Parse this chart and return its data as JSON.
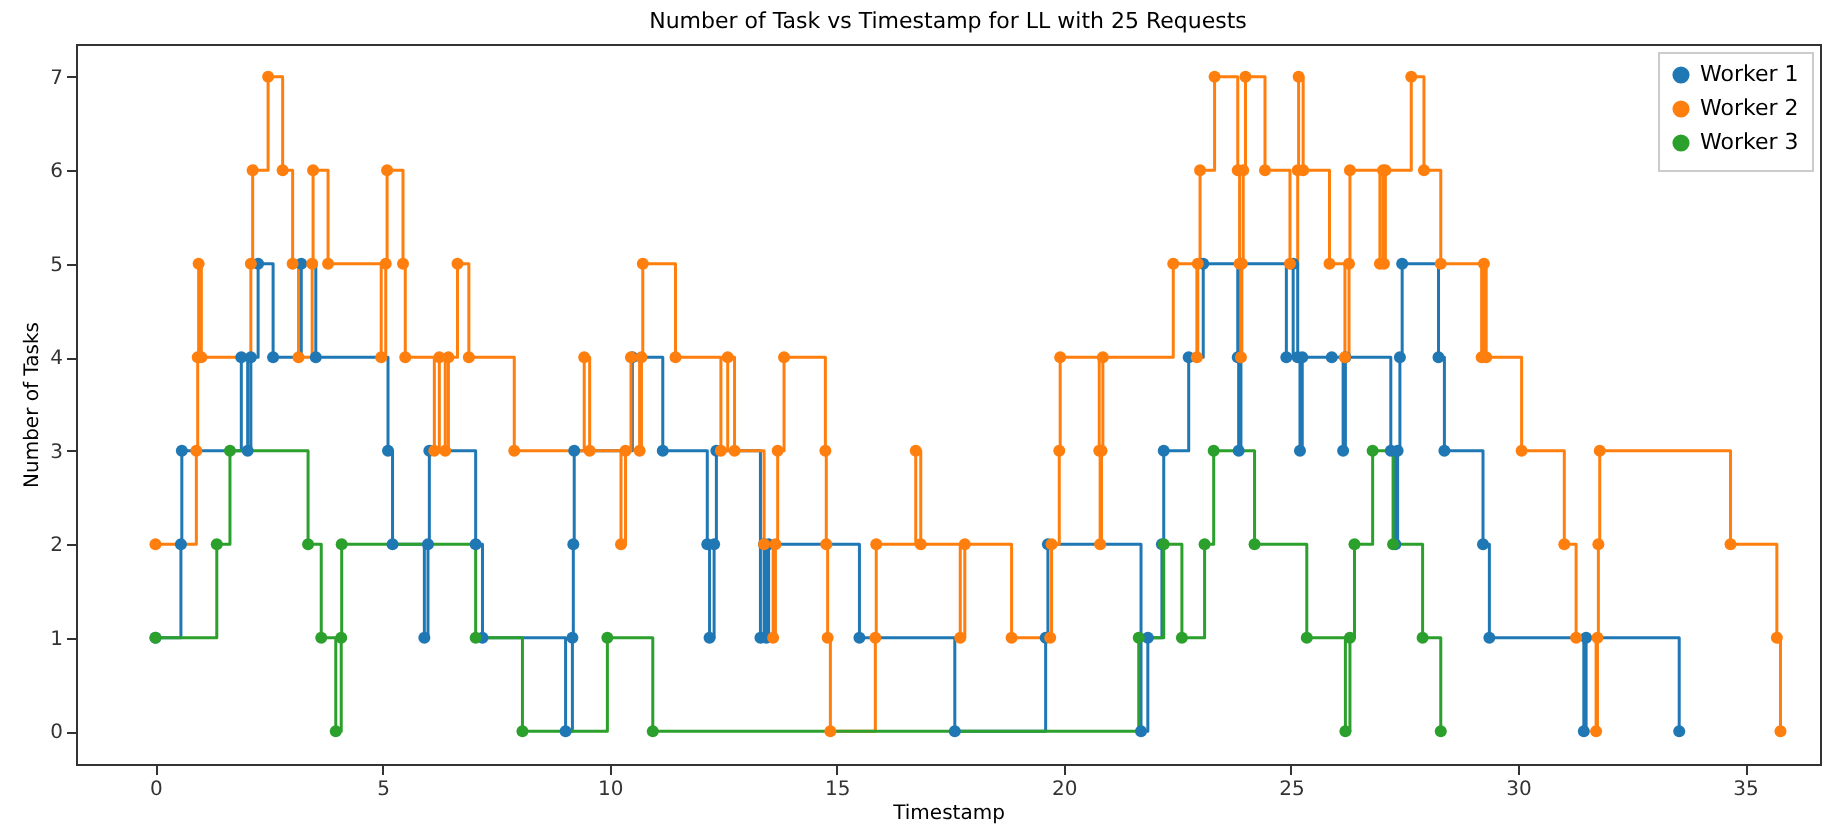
{
  "chart_data": {
    "type": "step",
    "title": "Number of Task vs Timestamp for LL with 25 Requests",
    "xlabel": "Timestamp",
    "ylabel": "Number of Tasks",
    "xlim": [
      -1.75,
      36.65
    ],
    "xticks": [
      0,
      5,
      10,
      15,
      20,
      25,
      30,
      35
    ],
    "ylim": [
      -0.35,
      7.35
    ],
    "yticks": [
      0,
      1,
      2,
      3,
      4,
      5,
      6,
      7
    ],
    "grid": false,
    "legend": "top right",
    "marker": "circle",
    "line_style": "solid",
    "series": [
      {
        "name": "Worker 1",
        "color": "#1f77b4",
        "x": [
          0,
          0.56,
          0.58,
          1.89,
          2.03,
          2.1,
          2.26,
          2.59,
          3.21,
          3.53,
          5.12,
          5.22,
          5.92,
          6.0,
          6.03,
          7.05,
          7.2,
          9.03,
          9.18,
          9.2,
          9.22,
          10.5,
          11.17,
          12.15,
          12.2,
          12.3,
          12.35,
          13.32,
          13.4,
          13.45,
          13.5,
          15.5,
          17.6,
          19.6,
          19.65,
          21.7,
          21.85,
          22.16,
          22.2,
          22.75,
          23.07,
          23.83,
          23.85,
          23.9,
          24.9,
          25.05,
          25.15,
          25.2,
          25.25,
          25.9,
          26.15,
          26.2,
          27.2,
          27.3,
          27.35,
          27.4,
          27.45,
          28.25,
          28.38,
          29.23,
          29.37,
          31.45,
          31.5,
          33.55
        ],
        "values": [
          1,
          2,
          3,
          4,
          3,
          4,
          5,
          4,
          5,
          4,
          3,
          2,
          1,
          2,
          3,
          2,
          1,
          0,
          1,
          2,
          3,
          4,
          3,
          2,
          1,
          2,
          3,
          1,
          2,
          1,
          2,
          1,
          0,
          1,
          2,
          0,
          1,
          2,
          3,
          4,
          5,
          4,
          3,
          5,
          4,
          5,
          4,
          3,
          4,
          4,
          3,
          4,
          3,
          2,
          3,
          4,
          5,
          4,
          3,
          2,
          1,
          0,
          1,
          0
        ]
      },
      {
        "name": "Worker 2",
        "color": "#ff7f0e",
        "x": [
          0,
          0.9,
          0.93,
          0.95,
          1.01,
          2.1,
          2.14,
          2.48,
          2.8,
          3.02,
          3.15,
          3.45,
          3.47,
          3.8,
          4.97,
          5.07,
          5.1,
          5.45,
          5.5,
          6.14,
          6.25,
          6.38,
          6.45,
          6.65,
          6.9,
          7.9,
          9.44,
          9.56,
          10.25,
          10.35,
          10.47,
          10.66,
          10.7,
          10.73,
          11.45,
          12.45,
          12.6,
          12.75,
          13.4,
          13.6,
          13.65,
          13.7,
          13.84,
          14.75,
          14.77,
          14.8,
          14.86,
          15.85,
          15.87,
          16.74,
          16.85,
          17.72,
          17.82,
          18.85,
          19.7,
          19.73,
          19.9,
          19.92,
          20.78,
          20.8,
          20.83,
          20.86,
          22.41,
          22.93,
          22.95,
          23.0,
          23.32,
          23.83,
          23.87,
          23.9,
          23.92,
          23.95,
          24.0,
          24.43,
          24.98,
          25.15,
          25.17,
          25.27,
          25.85,
          26.19,
          26.28,
          26.3,
          26.96,
          27.03,
          27.05,
          27.08,
          27.65,
          27.93,
          28.3,
          29.2,
          29.25,
          29.3,
          30.08,
          31.02,
          31.28,
          31.72,
          31.75,
          31.77,
          31.8,
          34.68,
          35.7,
          35.78
        ],
        "values": [
          2,
          3,
          4,
          5,
          4,
          5,
          6,
          7,
          6,
          5,
          4,
          5,
          6,
          5,
          4,
          5,
          6,
          5,
          4,
          3,
          4,
          3,
          4,
          5,
          4,
          3,
          4,
          3,
          2,
          3,
          4,
          3,
          4,
          5,
          4,
          3,
          4,
          3,
          2,
          1,
          2,
          3,
          4,
          3,
          2,
          1,
          0,
          1,
          2,
          3,
          2,
          1,
          2,
          1,
          1,
          2,
          3,
          4,
          3,
          2,
          3,
          4,
          5,
          4,
          5,
          6,
          7,
          6,
          5,
          4,
          5,
          6,
          7,
          6,
          5,
          6,
          7,
          6,
          5,
          4,
          5,
          6,
          5,
          6,
          5,
          6,
          7,
          6,
          5,
          4,
          5,
          4,
          3,
          2,
          1,
          0,
          1,
          2,
          3,
          2,
          1,
          0
        ]
      },
      {
        "name": "Worker 3",
        "color": "#2ca02c",
        "x": [
          0,
          1.35,
          1.64,
          3.36,
          3.65,
          3.97,
          4.09,
          4.1,
          7.05,
          8.08,
          9.95,
          10.95,
          21.65,
          22.2,
          22.6,
          23.1,
          23.3,
          24.2,
          25.35,
          26.2,
          26.3,
          26.4,
          26.8,
          27.25,
          27.9,
          28.3
        ],
        "values": [
          1,
          2,
          3,
          2,
          1,
          0,
          1,
          2,
          1,
          0,
          1,
          0,
          1,
          2,
          1,
          2,
          3,
          2,
          1,
          0,
          1,
          2,
          3,
          2,
          1,
          0
        ]
      }
    ]
  }
}
